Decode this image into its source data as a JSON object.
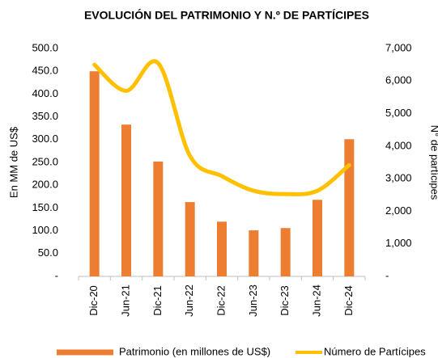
{
  "chart_data": {
    "type": "bar+line",
    "title": "EVOLUCIÓN DEL PATRIMONIO Y N.º DE PARTÍCIPES",
    "y_label": "En MM de US$",
    "y2_label": "N° de partícipes",
    "categories": [
      "Dic-20",
      "Jun-21",
      "Dic-21",
      "Jun-22",
      "Dic-22",
      "Jun-23",
      "Dic-23",
      "Jun-24",
      "Dic-24"
    ],
    "series": [
      {
        "name": "Patrimonio (en millones de US$)",
        "type": "bar",
        "color": "#ed7d31",
        "values": [
          450,
          333,
          252,
          163,
          120,
          101,
          106,
          168,
          301
        ]
      },
      {
        "name": "Número de Partícipes",
        "type": "line",
        "axis": "y2",
        "color": "#ffc000",
        "values": [
          6500,
          5700,
          6550,
          3700,
          3080,
          2630,
          2530,
          2630,
          3420
        ]
      }
    ],
    "ylim": [
      0,
      500
    ],
    "yticks": [
      {
        "value": 0,
        "label": "-"
      },
      {
        "value": 50,
        "label": "50.0"
      },
      {
        "value": 100,
        "label": "100.0"
      },
      {
        "value": 150,
        "label": "150.0"
      },
      {
        "value": 200,
        "label": "200.0"
      },
      {
        "value": 250,
        "label": "250.0"
      },
      {
        "value": 300,
        "label": "300.0"
      },
      {
        "value": 350,
        "label": "350.0"
      },
      {
        "value": 400,
        "label": "400.0"
      },
      {
        "value": 450,
        "label": "450.0"
      },
      {
        "value": 500,
        "label": "500.0"
      }
    ],
    "y2lim": [
      0,
      7000
    ],
    "y2ticks": [
      {
        "value": 0,
        "label": "-"
      },
      {
        "value": 1000,
        "label": "1,000"
      },
      {
        "value": 2000,
        "label": "2,000"
      },
      {
        "value": 3000,
        "label": "3,000"
      },
      {
        "value": 4000,
        "label": "4,000"
      },
      {
        "value": 5000,
        "label": "5,000"
      },
      {
        "value": 6000,
        "label": "6,000"
      },
      {
        "value": 7000,
        "label": "7,000"
      }
    ],
    "grid": false,
    "legend": "bottom"
  }
}
